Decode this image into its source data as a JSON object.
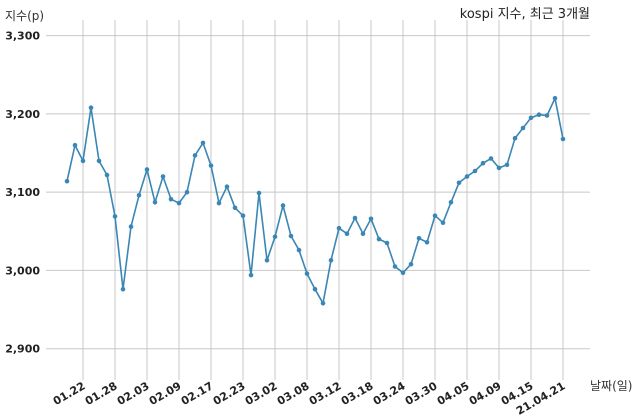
{
  "chart_data": {
    "type": "line",
    "title": "kospi 지수, 최근 3개월",
    "xlabel": "날짜(일)",
    "ylabel": "지수(p)",
    "ylim": [
      2860,
      3320
    ],
    "yticks": [
      2900,
      3000,
      3100,
      3200,
      3300
    ],
    "ytick_labels": [
      "2,900",
      "3,000",
      "3,100",
      "3,200",
      "3,300"
    ],
    "xtick_labels": [
      "01.22",
      "01.28",
      "02.03",
      "02.09",
      "02.17",
      "02.23",
      "03.02",
      "03.08",
      "03.12",
      "03.18",
      "03.24",
      "03.30",
      "04.05",
      "04.09",
      "04.15",
      "21.04.21"
    ],
    "xtick_index": [
      2,
      6,
      10,
      14,
      18,
      22,
      26,
      30,
      34,
      38,
      42,
      46,
      50,
      54,
      58,
      62
    ],
    "grid": true,
    "color": "#3a86b4",
    "series": [
      {
        "values": [
          3114,
          3160,
          3140,
          3208,
          3140,
          3122,
          3069,
          2976,
          3056,
          3096,
          3129,
          3087,
          3120,
          3091,
          3086,
          3100,
          3147,
          3163,
          3134,
          3086,
          3107,
          3080,
          3070,
          2994,
          3099,
          3013,
          3043,
          3083,
          3044,
          3026,
          2996,
          2976,
          2958,
          3013,
          3054,
          3047,
          3067,
          3047,
          3066,
          3040,
          3035,
          3005,
          2997,
          3008,
          3041,
          3036,
          3070,
          3061,
          3087,
          3112,
          3120,
          3127,
          3137,
          3143,
          3131,
          3135,
          3169,
          3182,
          3195,
          3199,
          3198,
          3220,
          3168
        ]
      }
    ]
  }
}
